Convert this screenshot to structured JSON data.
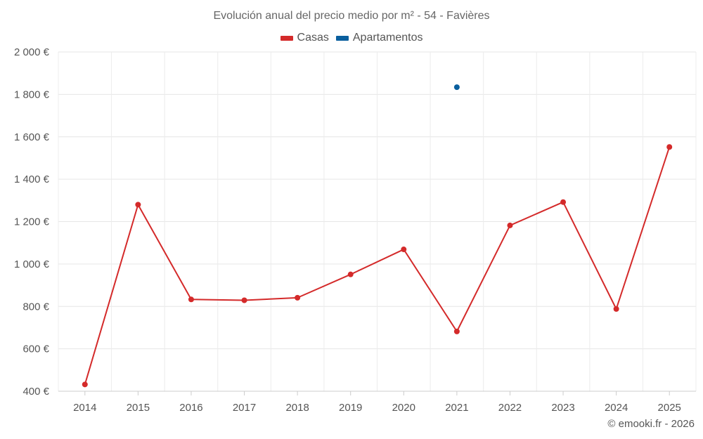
{
  "chart_data": {
    "type": "line",
    "title": "Evolución anual del precio medio por m² - 54 - Favières",
    "categories": [
      "2014",
      "2015",
      "2016",
      "2017",
      "2018",
      "2019",
      "2020",
      "2021",
      "2022",
      "2023",
      "2024",
      "2025"
    ],
    "series": [
      {
        "name": "Casas",
        "color": "#d42a2a",
        "values": [
          432,
          1280,
          833,
          829,
          841,
          951,
          1069,
          682,
          1182,
          1292,
          788,
          1552
        ]
      },
      {
        "name": "Apartamentos",
        "color": "#0a5f9e",
        "values": [
          null,
          null,
          null,
          null,
          null,
          null,
          null,
          1834,
          null,
          null,
          null,
          null
        ]
      }
    ],
    "ylim": [
      400,
      2000
    ],
    "yticks": [
      400,
      600,
      800,
      1000,
      1200,
      1400,
      1600,
      1800,
      2000
    ],
    "ytick_labels": [
      "400 €",
      "600 €",
      "800 €",
      "1 000 €",
      "1 200 €",
      "1 400 €",
      "1 600 €",
      "1 800 €",
      "2 000 €"
    ],
    "grid": true,
    "legend_position": "top-center"
  },
  "credit": "© emooki.fr - 2026"
}
